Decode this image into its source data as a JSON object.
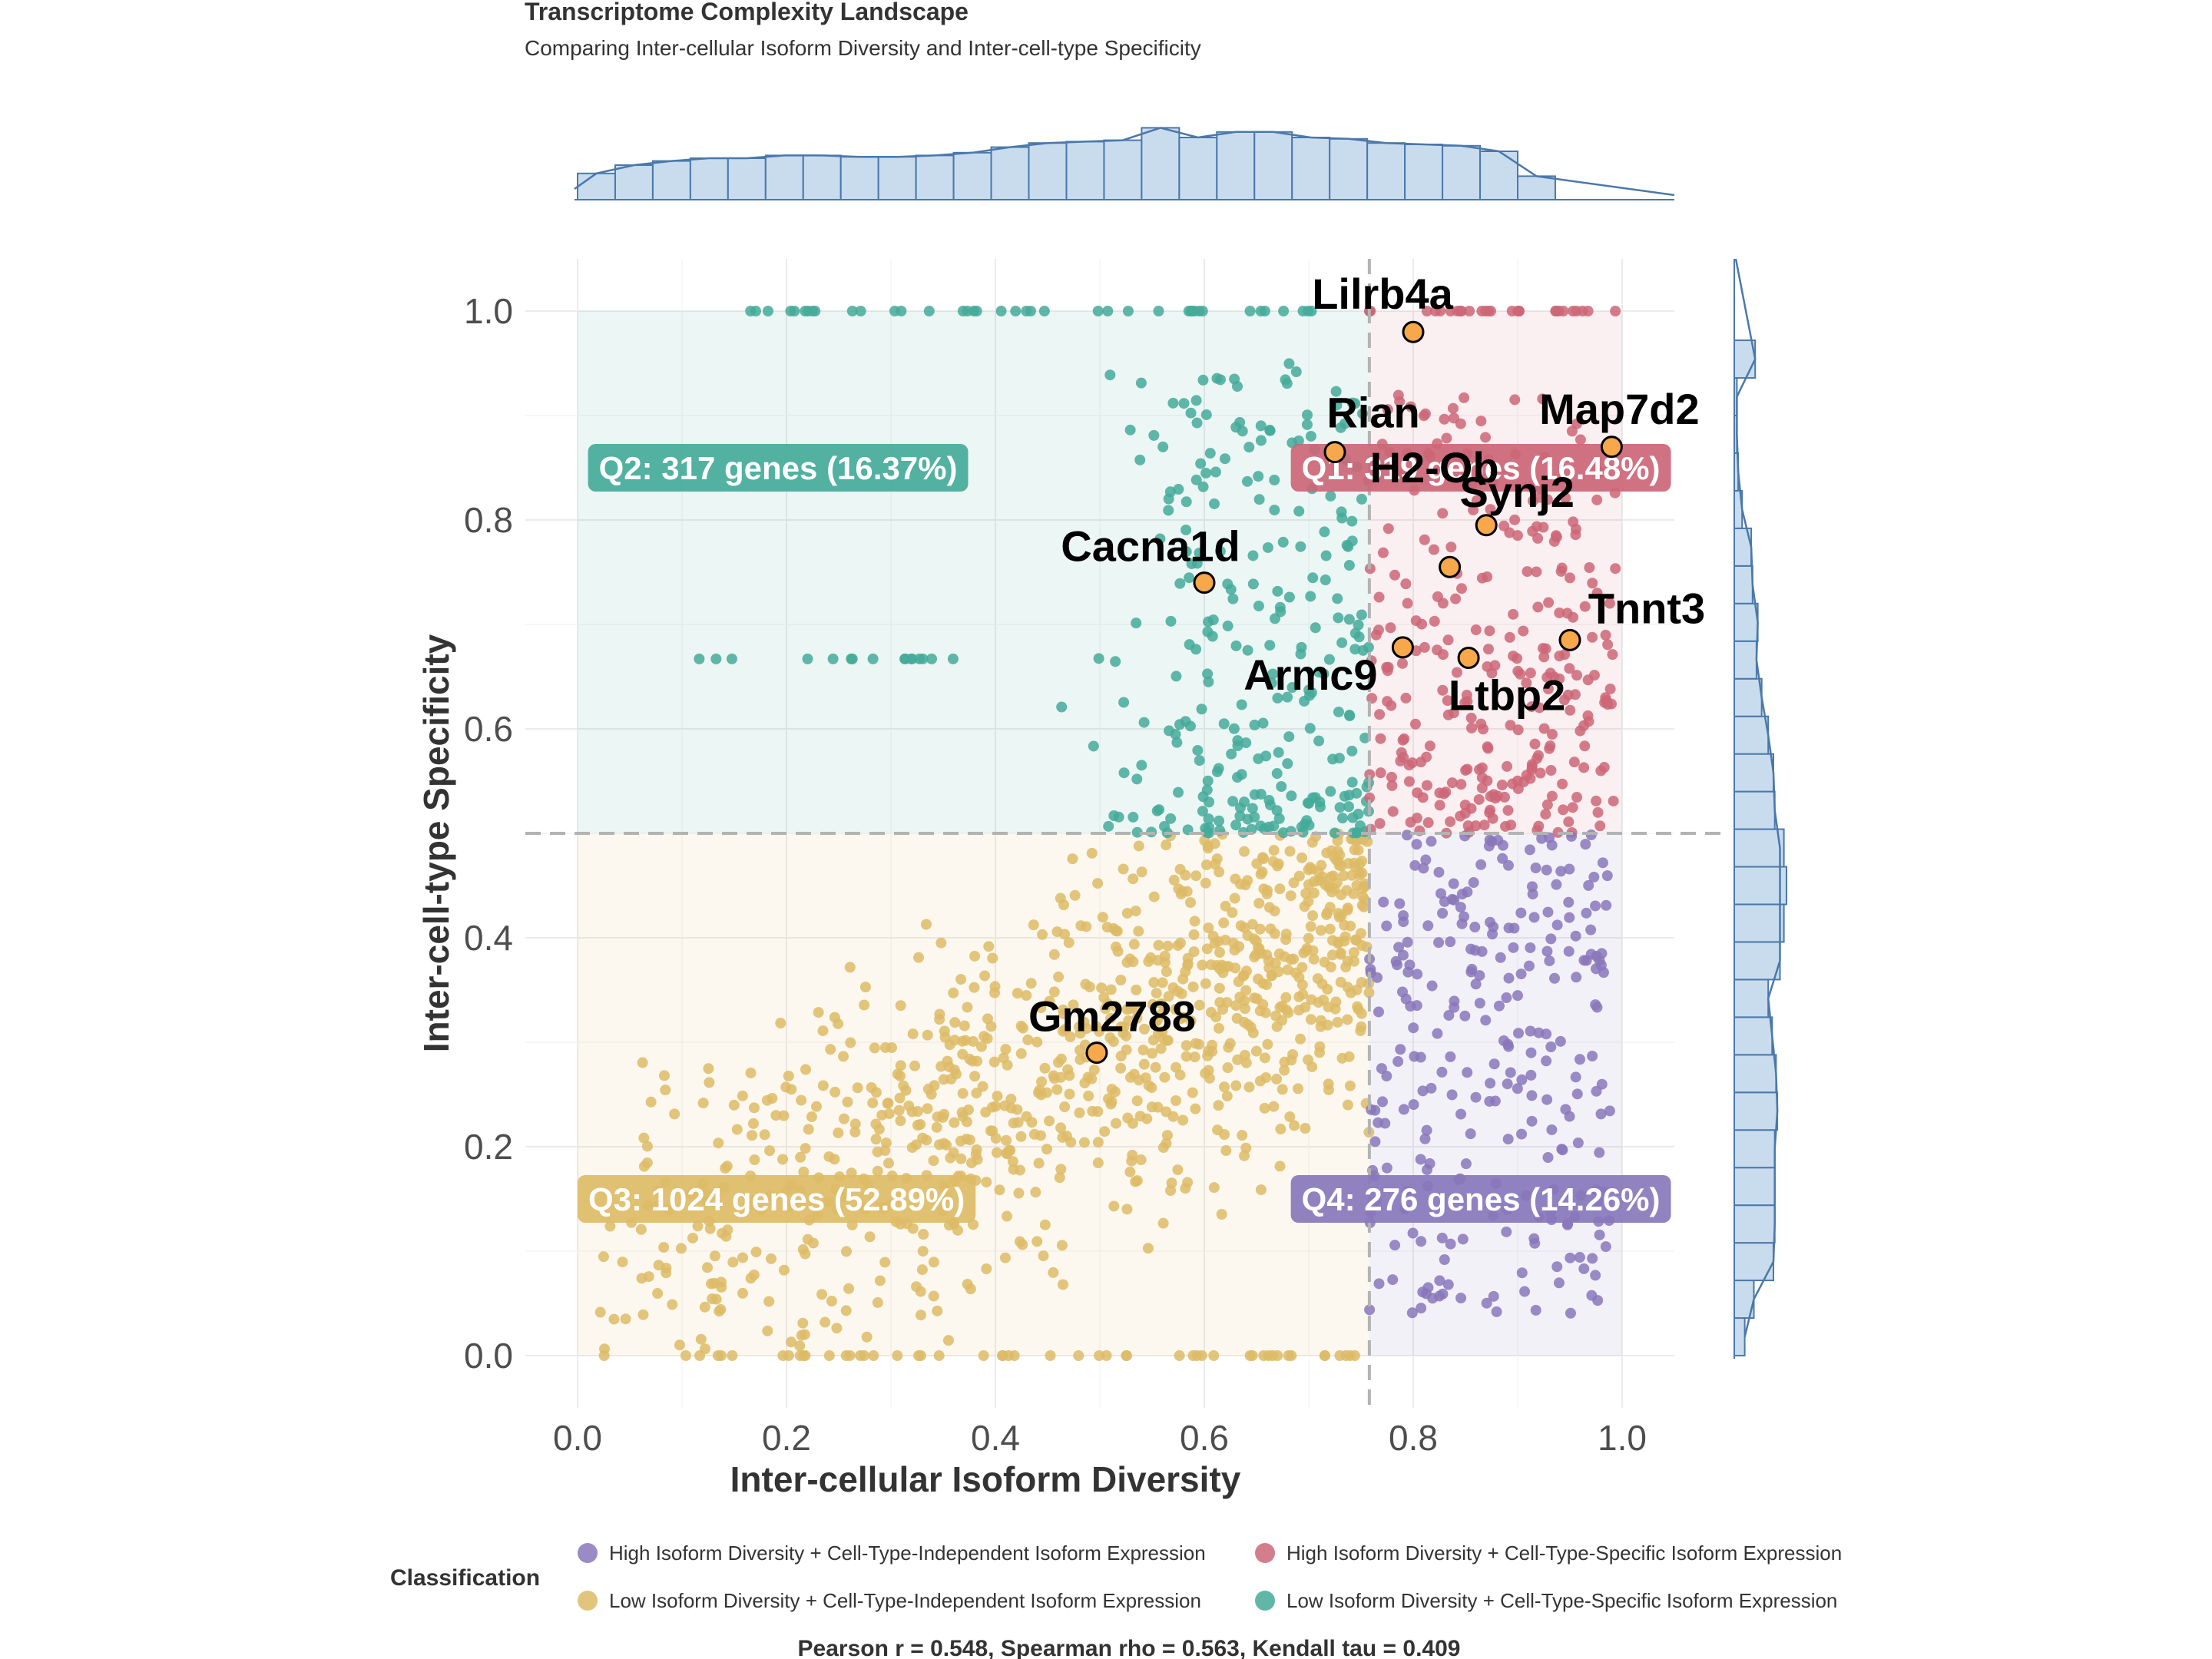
{
  "title": "Transcriptome Complexity Landscape",
  "subtitle": "Comparing Inter-cellular Isoform Diversity and Inter-cell-type Specificity",
  "stats": "Pearson r = 0.548, Spearman rho = 0.563, Kendall tau = 0.409",
  "colors": {
    "Q1": "#cc6677",
    "Q2": "#44aa99",
    "Q3": "#ddbb66",
    "Q4": "#8877bb",
    "highlight": "#f7a84a",
    "hist_fill": "#c9dcee",
    "hist_stroke": "#4a78aa"
  },
  "chart_data": {
    "type": "scatter",
    "xlabel": "Inter-cellular Isoform Diversity",
    "ylabel": "Inter-cell-type Specificity",
    "xlim": [
      -0.05,
      1.05
    ],
    "ylim": [
      -0.05,
      1.05
    ],
    "xticks": [
      "0.0",
      "0.2",
      "0.4",
      "0.6",
      "0.8",
      "1.0"
    ],
    "yticks": [
      "0.0",
      "0.2",
      "0.4",
      "0.6",
      "0.8",
      "1.0"
    ],
    "grid": true,
    "thresholds": {
      "x": 0.758,
      "y": 0.5
    },
    "quadrants": [
      {
        "id": "Q1",
        "label": "Q1: 319 genes (16.48%)",
        "count": 319
      },
      {
        "id": "Q2",
        "label": "Q2: 317 genes (16.37%)",
        "count": 317
      },
      {
        "id": "Q3",
        "label": "Q3: 1024 genes (52.89%)",
        "count": 1024
      },
      {
        "id": "Q4",
        "label": "Q4: 276 genes (14.26%)",
        "count": 276
      }
    ],
    "legend": {
      "title": "Classification",
      "position": "bottom",
      "entries": [
        {
          "label": "High Isoform Diversity + Cell-Type-Independent Isoform Expression",
          "quadrant": "Q4"
        },
        {
          "label": "High Isoform Diversity + Cell-Type-Specific Isoform Expression",
          "quadrant": "Q1"
        },
        {
          "label": "Low Isoform Diversity + Cell-Type-Independent Isoform Expression",
          "quadrant": "Q3"
        },
        {
          "label": "Low Isoform Diversity + Cell-Type-Specific Isoform Expression",
          "quadrant": "Q2"
        }
      ]
    },
    "highlighted_genes": [
      {
        "name": "Lilrb4a",
        "x": 0.8,
        "y": 0.98
      },
      {
        "name": "Rian",
        "x": 0.725,
        "y": 0.865
      },
      {
        "name": "Map7d2",
        "x": 0.99,
        "y": 0.87
      },
      {
        "name": "Synj2",
        "x": 0.87,
        "y": 0.795
      },
      {
        "name": "Cacna1d",
        "x": 0.6,
        "y": 0.74
      },
      {
        "name": "H2-Ob",
        "x": 0.835,
        "y": 0.755
      },
      {
        "name": "Tnnt3",
        "x": 0.95,
        "y": 0.685
      },
      {
        "name": "Armc9",
        "x": 0.79,
        "y": 0.678
      },
      {
        "name": "Ltbp2",
        "x": 0.853,
        "y": 0.668
      },
      {
        "name": "Gm2788",
        "x": 0.497,
        "y": 0.29
      }
    ],
    "x_marginal_histogram": {
      "bin_start": 0.0,
      "bin_width": 0.036,
      "counts": [
        38,
        50,
        56,
        60,
        60,
        64,
        64,
        62,
        62,
        64,
        68,
        76,
        82,
        84,
        86,
        104,
        90,
        98,
        98,
        90,
        88,
        82,
        80,
        78,
        70,
        34
      ]
    },
    "y_marginal_histogram": {
      "bin_start": 0.0,
      "bin_width": 0.036,
      "counts": [
        16,
        30,
        60,
        62,
        62,
        62,
        66,
        64,
        58,
        52,
        70,
        76,
        80,
        76,
        62,
        60,
        52,
        42,
        34,
        36,
        28,
        26,
        12,
        6,
        4,
        4,
        32
      ]
    }
  }
}
